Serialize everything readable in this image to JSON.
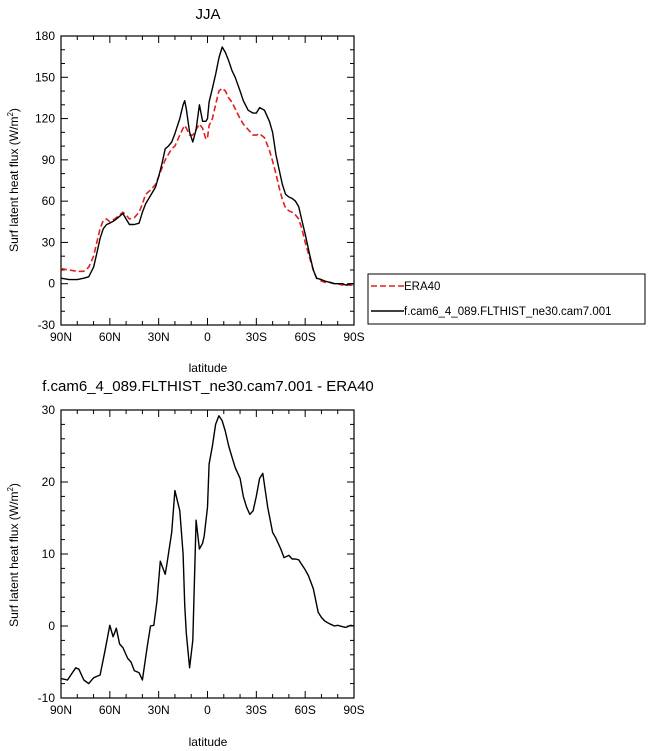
{
  "chart_data": [
    {
      "type": "line",
      "title": "JJA",
      "xlabel": "latitude",
      "ylabel": "Surf latent heat flux (W/m",
      "ylabel_sup": "2",
      "ylabel_close": ")",
      "xlim": [
        90,
        -90
      ],
      "ylim": [
        -30,
        180
      ],
      "x_ticks": [
        90,
        60,
        30,
        0,
        -30,
        -60,
        -90
      ],
      "x_tick_labels": [
        "90N",
        "60N",
        "30N",
        "0",
        "30S",
        "60S",
        "90S"
      ],
      "y_ticks": [
        -30,
        0,
        30,
        60,
        90,
        120,
        150,
        180
      ],
      "y_tick_labels": [
        "-30",
        "0",
        "30",
        "60",
        "90",
        "120",
        "150",
        "180"
      ],
      "legend": "right",
      "series": [
        {
          "name": "ERA40",
          "color": "#e02020",
          "dash": true,
          "x": [
            90,
            85,
            80,
            76,
            73,
            70,
            68,
            66,
            64,
            62,
            60,
            57,
            54,
            52,
            50,
            48,
            45,
            42,
            40,
            38,
            35,
            32,
            30,
            28,
            26,
            24,
            22,
            20,
            17,
            15,
            14,
            13,
            11,
            9,
            7,
            5,
            3,
            1,
            0,
            -1,
            -3,
            -5,
            -7,
            -9,
            -11,
            -13,
            -15,
            -17,
            -20,
            -22,
            -25,
            -28,
            -30,
            -32,
            -35,
            -38,
            -40,
            -42,
            -44,
            -46,
            -48,
            -50,
            -52,
            -54,
            -56,
            -58,
            -60,
            -63,
            -65,
            -67,
            -70,
            -72,
            -75,
            -78,
            -80,
            -83,
            -85,
            -88,
            -90
          ],
          "y": [
            11,
            10,
            9,
            9,
            12,
            20,
            30,
            40,
            46,
            47,
            45,
            47,
            50,
            52,
            50,
            47,
            48,
            52,
            58,
            65,
            68,
            72,
            78,
            84,
            90,
            94,
            98,
            100,
            108,
            113,
            115,
            113,
            108,
            108,
            112,
            116,
            113,
            105,
            106,
            115,
            120,
            130,
            140,
            142,
            140,
            135,
            132,
            127,
            120,
            116,
            112,
            108,
            108,
            109,
            106,
            97,
            89,
            80,
            70,
            61,
            55,
            53,
            52,
            50,
            47,
            40,
            30,
            18,
            10,
            4,
            2,
            1,
            1,
            0,
            0,
            -1,
            -1,
            -1,
            -1
          ]
        },
        {
          "name": "f.cam6_4_089.FLTHIST_ne30.cam7.001",
          "color": "#000000",
          "dash": false,
          "x": [
            90,
            85,
            80,
            76,
            73,
            70,
            68,
            66,
            64,
            62,
            60,
            57,
            54,
            52,
            50,
            48,
            45,
            42,
            40,
            38,
            35,
            32,
            30,
            28,
            26,
            24,
            22,
            20,
            17,
            15,
            14,
            13,
            11,
            9,
            7,
            5,
            3,
            1,
            0,
            -1,
            -3,
            -5,
            -7,
            -9,
            -11,
            -13,
            -15,
            -17,
            -20,
            -22,
            -25,
            -28,
            -30,
            -32,
            -35,
            -38,
            -40,
            -42,
            -44,
            -46,
            -48,
            -50,
            -52,
            -54,
            -56,
            -58,
            -60,
            -63,
            -65,
            -67,
            -70,
            -72,
            -75,
            -78,
            -80,
            -83,
            -85,
            -88,
            -90
          ],
          "y": [
            4,
            3,
            3,
            4,
            5,
            12,
            22,
            33,
            40,
            43,
            44,
            46,
            49,
            51,
            47,
            43,
            43,
            44,
            52,
            58,
            64,
            70,
            78,
            87,
            98,
            100,
            103,
            109,
            120,
            130,
            133,
            127,
            110,
            103,
            112,
            130,
            118,
            118,
            120,
            132,
            142,
            152,
            164,
            172,
            168,
            162,
            155,
            150,
            140,
            133,
            126,
            124,
            124,
            128,
            126,
            118,
            110,
            94,
            83,
            72,
            65,
            63,
            62,
            60,
            56,
            46,
            36,
            20,
            10,
            4,
            3,
            2,
            1,
            0,
            0,
            0,
            -1,
            0,
            0
          ]
        }
      ]
    },
    {
      "type": "line",
      "title": "f.cam6_4_089.FLTHIST_ne30.cam7.001 - ERA40",
      "xlabel": "latitude",
      "ylabel": "Surf latent heat flux (W/m",
      "ylabel_sup": "2",
      "ylabel_close": ")",
      "xlim": [
        90,
        -90
      ],
      "ylim": [
        -10,
        30
      ],
      "x_ticks": [
        90,
        60,
        30,
        0,
        -30,
        -60,
        -90
      ],
      "x_tick_labels": [
        "90N",
        "60N",
        "30N",
        "0",
        "30S",
        "60S",
        "90S"
      ],
      "y_ticks": [
        -10,
        0,
        10,
        20,
        30
      ],
      "y_tick_labels": [
        "-10",
        "0",
        "10",
        "20",
        "30"
      ],
      "series": [
        {
          "color": "#000000",
          "dash": false,
          "x": [
            90,
            86,
            81,
            79,
            76,
            73,
            70,
            68,
            66,
            63,
            60,
            58,
            56,
            54,
            52,
            49,
            47,
            45,
            42,
            40,
            37,
            35,
            33,
            31,
            29,
            26,
            25,
            22,
            20,
            17,
            15,
            14,
            13,
            11,
            9,
            7,
            5,
            3,
            2,
            0,
            -1,
            -3,
            -5,
            -7,
            -9,
            -11,
            -13,
            -15,
            -17,
            -20,
            -22,
            -24,
            -26,
            -28,
            -30,
            -32,
            -34,
            -37,
            -40,
            -42,
            -45,
            -47,
            -50,
            -52,
            -54,
            -56,
            -58,
            -60,
            -62,
            -65,
            -68,
            -70,
            -72,
            -75,
            -78,
            -80,
            -83,
            -85,
            -88,
            -90
          ],
          "y": [
            -7.3,
            -7.5,
            -5.8,
            -6,
            -7.5,
            -8,
            -7.2,
            -7,
            -6.8,
            -3.5,
            0.1,
            -1.5,
            -0.3,
            -2.5,
            -3,
            -4.5,
            -5,
            -6.2,
            -6.5,
            -7.5,
            -2.8,
            0,
            0.1,
            3.5,
            9,
            7.2,
            8.5,
            13,
            18.8,
            16,
            10,
            3,
            -1,
            -5.8,
            -2,
            14.7,
            10.7,
            11.5,
            12.5,
            16.5,
            22.5,
            25,
            28,
            29.2,
            28.5,
            27,
            25,
            23.5,
            22,
            20.5,
            18,
            16.5,
            15.5,
            16,
            18,
            20.5,
            21.2,
            16.5,
            13,
            12.2,
            10.7,
            9.5,
            9.8,
            9.3,
            9.3,
            9.2,
            8.5,
            7.8,
            7,
            5.2,
            1.9,
            1.2,
            0.7,
            0.3,
            0,
            0.1,
            -0.1,
            -0.2,
            0.1,
            0
          ]
        }
      ]
    }
  ]
}
